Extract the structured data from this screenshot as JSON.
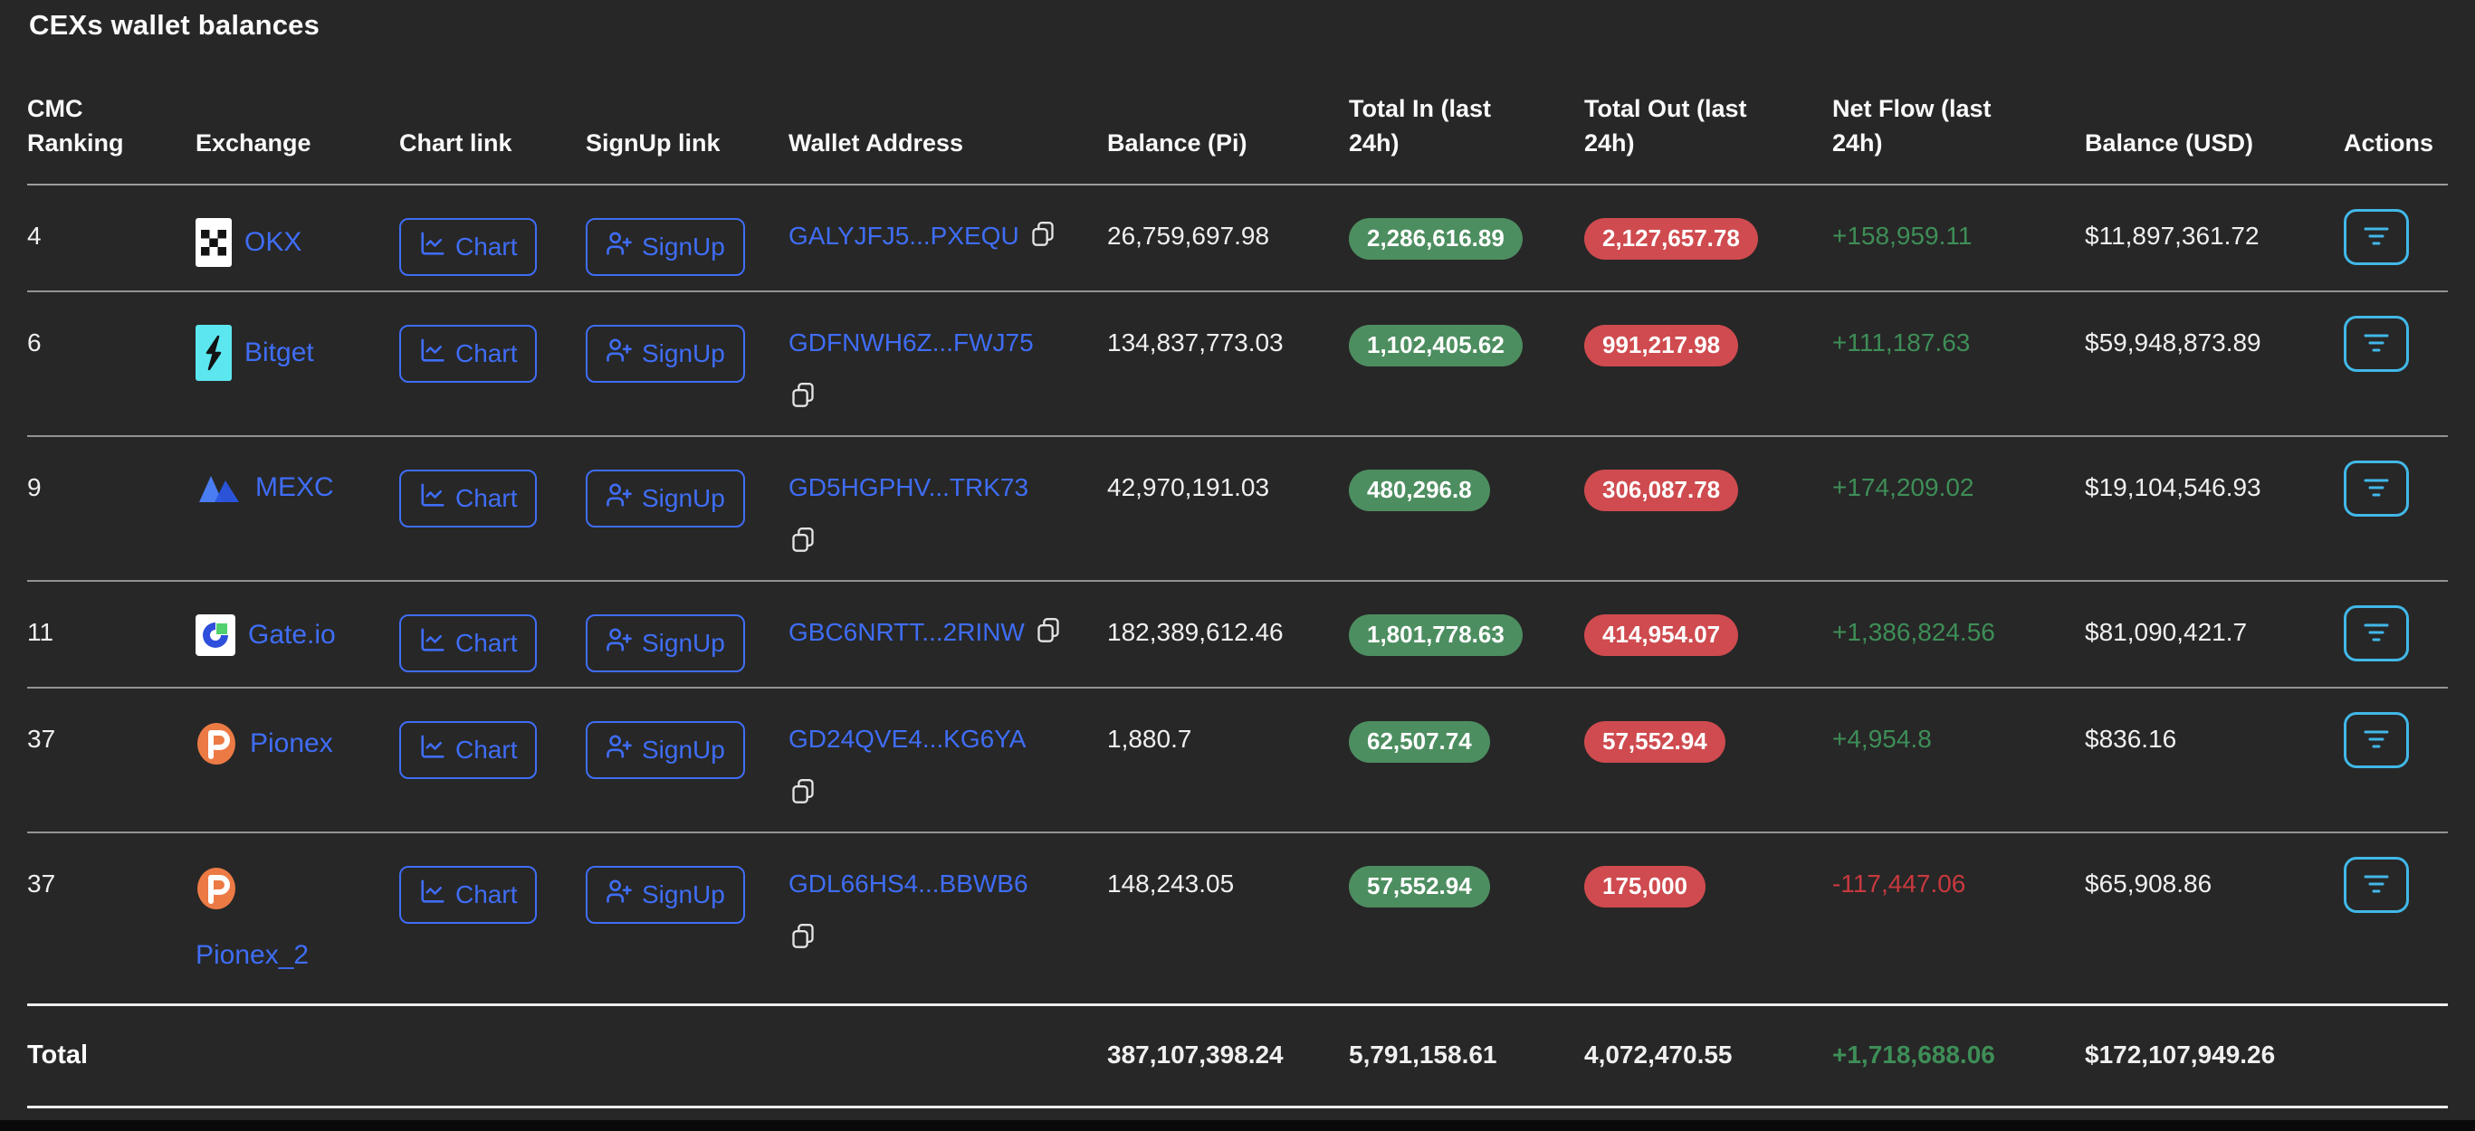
{
  "title": "CEXs wallet balances",
  "colors": {
    "accent_blue": "#3f6df5",
    "badge_green": "#4d8e60",
    "badge_red": "#cf4b4f",
    "positive_green": "#3e8e57",
    "negative_red": "#c8393e",
    "actions_cyan": "#41b8e8",
    "background": "#272727"
  },
  "table": {
    "columns": [
      {
        "id": "cmc_ranking",
        "label": "CMC Ranking"
      },
      {
        "id": "exchange",
        "label": "Exchange"
      },
      {
        "id": "chart_link",
        "label": "Chart link"
      },
      {
        "id": "signup_link",
        "label": "SignUp link"
      },
      {
        "id": "wallet_address",
        "label": "Wallet Address"
      },
      {
        "id": "balance_pi",
        "label": "Balance (Pi)"
      },
      {
        "id": "total_in",
        "label": "Total In (last 24h)"
      },
      {
        "id": "total_out",
        "label": "Total Out (last 24h)"
      },
      {
        "id": "net_flow",
        "label": "Net Flow (last 24h)"
      },
      {
        "id": "balance_usd",
        "label": "Balance (USD)"
      },
      {
        "id": "actions",
        "label": "Actions"
      }
    ],
    "chart_button_label": "Chart",
    "signup_button_label": "SignUp",
    "rows": [
      {
        "cmc_ranking": "4",
        "exchange": {
          "name": "OKX",
          "logo": "okx",
          "name_wrap": false
        },
        "wallet": {
          "address": "GALYJFJ5...PXEQU",
          "copy_inline": true
        },
        "balance_pi": "26,759,697.98",
        "total_in": "2,286,616.89",
        "total_out": "2,127,657.78",
        "net_flow": {
          "value": "+158,959.11",
          "direction": "positive"
        },
        "balance_usd": "$11,897,361.72"
      },
      {
        "cmc_ranking": "6",
        "exchange": {
          "name": "Bitget",
          "logo": "bitget",
          "name_wrap": false
        },
        "wallet": {
          "address": "GDFNWH6Z...FWJ75",
          "copy_inline": false
        },
        "balance_pi": "134,837,773.03",
        "total_in": "1,102,405.62",
        "total_out": "991,217.98",
        "net_flow": {
          "value": "+111,187.63",
          "direction": "positive"
        },
        "balance_usd": "$59,948,873.89"
      },
      {
        "cmc_ranking": "9",
        "exchange": {
          "name": "MEXC",
          "logo": "mexc",
          "name_wrap": false
        },
        "wallet": {
          "address": "GD5HGPHV...TRK73",
          "copy_inline": false
        },
        "balance_pi": "42,970,191.03",
        "total_in": "480,296.8",
        "total_out": "306,087.78",
        "net_flow": {
          "value": "+174,209.02",
          "direction": "positive"
        },
        "balance_usd": "$19,104,546.93"
      },
      {
        "cmc_ranking": "11",
        "exchange": {
          "name": "Gate.io",
          "logo": "gateio",
          "name_wrap": false
        },
        "wallet": {
          "address": "GBC6NRTT...2RINW",
          "copy_inline": true
        },
        "balance_pi": "182,389,612.46",
        "total_in": "1,801,778.63",
        "total_out": "414,954.07",
        "net_flow": {
          "value": "+1,386,824.56",
          "direction": "positive"
        },
        "balance_usd": "$81,090,421.7"
      },
      {
        "cmc_ranking": "37",
        "exchange": {
          "name": "Pionex",
          "logo": "pionex",
          "name_wrap": false
        },
        "wallet": {
          "address": "GD24QVE4...KG6YA",
          "copy_inline": false
        },
        "balance_pi": "1,880.7",
        "total_in": "62,507.74",
        "total_out": "57,552.94",
        "net_flow": {
          "value": "+4,954.8",
          "direction": "positive"
        },
        "balance_usd": "$836.16"
      },
      {
        "cmc_ranking": "37",
        "exchange": {
          "name": "Pionex_2",
          "logo": "pionex",
          "name_wrap": true
        },
        "wallet": {
          "address": "GDL66HS4...BBWB6",
          "copy_inline": false
        },
        "balance_pi": "148,243.05",
        "total_in": "57,552.94",
        "total_out": "175,000",
        "net_flow": {
          "value": "-117,447.06",
          "direction": "negative"
        },
        "balance_usd": "$65,908.86"
      }
    ],
    "total": {
      "label": "Total",
      "balance_pi": "387,107,398.24",
      "total_in": "5,791,158.61",
      "total_out": "4,072,470.55",
      "net_flow": "+1,718,688.06",
      "balance_usd": "$172,107,949.26"
    }
  }
}
